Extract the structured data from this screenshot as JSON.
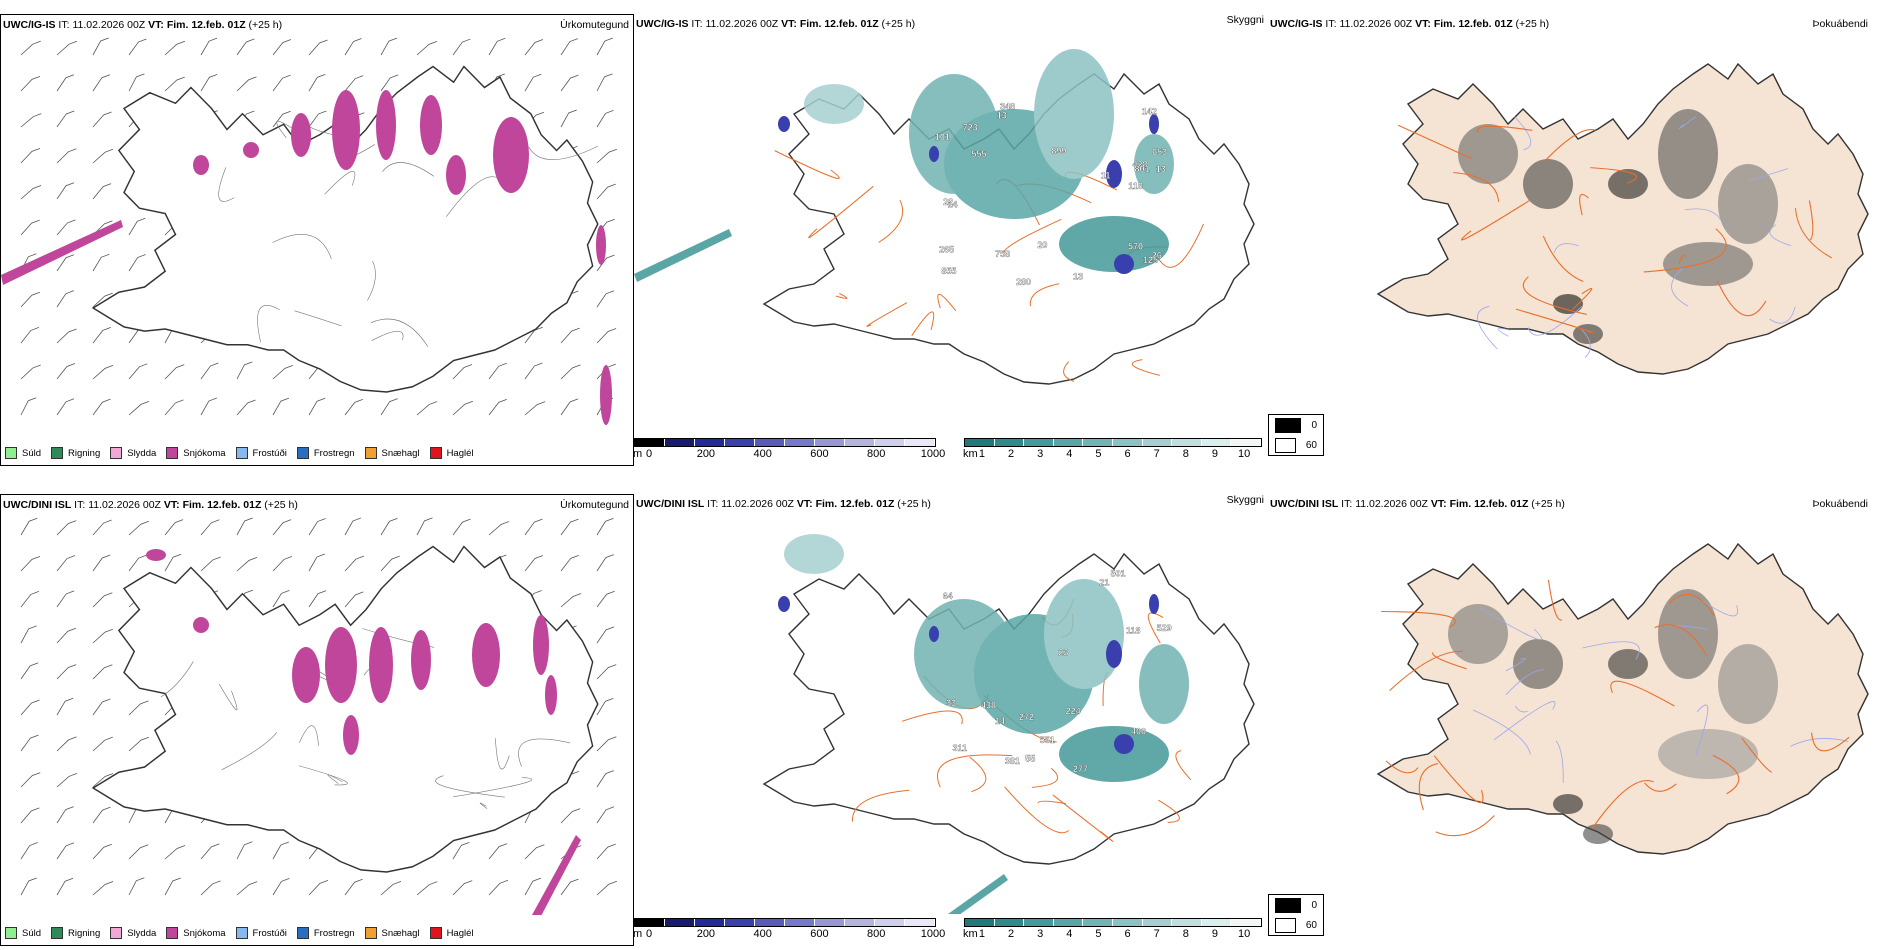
{
  "rows": [
    {
      "model": "UWC/IG-IS",
      "it_label": "IT:",
      "it_value": "11.02.2026 00Z",
      "vt_label": "VT:",
      "vt_value": "Fim. 12.feb. 01Z",
      "lead": "(+25 h)",
      "cloud_labels": [
        "570",
        "653",
        "26",
        "899",
        "855",
        "348",
        "428",
        "758",
        "142",
        "555",
        "13",
        "101",
        "110",
        "280",
        "265",
        "723",
        "125",
        "13",
        "20",
        "801",
        "22",
        "14",
        "13",
        "11"
      ]
    },
    {
      "model": "UWC/DINI ISL",
      "it_label": "IT:",
      "it_value": "11.02.2026 00Z",
      "vt_label": "VT:",
      "vt_value": "Fim. 12.feb. 01Z",
      "lead": "(+25 h)",
      "cloud_labels": [
        "529",
        "381",
        "501",
        "311",
        "551",
        "64",
        "224",
        "272",
        "438",
        "21",
        "55",
        "277",
        "118",
        "400",
        "23",
        "14",
        "33"
      ]
    }
  ],
  "panel_titles": {
    "precip_type": "Úrkomutegund",
    "cloud": "Skyggni",
    "fog": "Þokuábendi"
  },
  "precip_legend": [
    {
      "label": "Súld",
      "color": "#90ee90"
    },
    {
      "label": "Rigning",
      "color": "#2e8b57"
    },
    {
      "label": "Slydda",
      "color": "#f4a6d7"
    },
    {
      "label": "Snjókoma",
      "color": "#c0469b"
    },
    {
      "label": "Frostúði",
      "color": "#87b9f0"
    },
    {
      "label": "Frostregn",
      "color": "#2a6ec1"
    },
    {
      "label": "Snæhagl",
      "color": "#f0a030"
    },
    {
      "label": "Haglél",
      "color": "#e0141e"
    }
  ],
  "cloudbase_bar": {
    "unit": "m",
    "ticks": [
      "0",
      "200",
      "400",
      "600",
      "800",
      "1000"
    ],
    "colors": [
      "#000000",
      "#1a1a70",
      "#222a9a",
      "#3a3fae",
      "#5a5abb",
      "#7878c8",
      "#9797d5",
      "#b4b4e0",
      "#d0d0ec",
      "#e8e8f6"
    ]
  },
  "visibility_bar": {
    "unit": "km",
    "ticks": [
      "1",
      "2",
      "3",
      "4",
      "5",
      "6",
      "7",
      "8",
      "9",
      "10"
    ],
    "colors": [
      "#1f7a78",
      "#2f8a88",
      "#45999a",
      "#5aa6a6",
      "#72b3b3",
      "#8cc2c2",
      "#a6d0d0",
      "#c0dfdf",
      "#dbeeee",
      "#f2f8f8"
    ]
  },
  "fog_scale": {
    "items": [
      {
        "label": "0",
        "color": "#000000"
      },
      {
        "label": "60",
        "color": "#ffffff"
      }
    ]
  },
  "colors": {
    "land": "#f5e3d3",
    "road": "#e8702a",
    "river": "#9aa8f0",
    "coast": "#333333"
  }
}
